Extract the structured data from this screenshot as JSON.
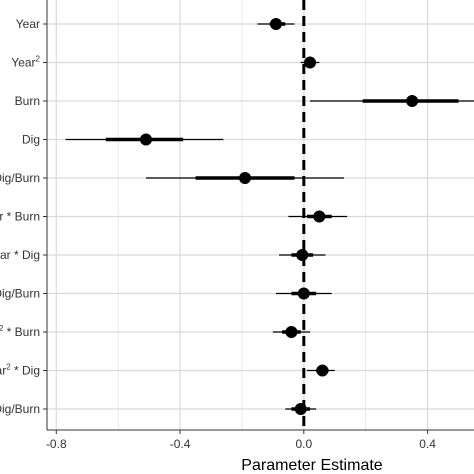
{
  "chart_data": {
    "type": "scatter",
    "subtype": "coefficient-plot",
    "xlabel": "Parameter Estimate",
    "ylabel": "",
    "xlim": [
      -0.83,
      0.55
    ],
    "xticks": [
      -0.8,
      -0.4,
      0.0,
      0.4
    ],
    "xtick_labels": [
      "-0.8",
      "-0.4",
      "0.0",
      "0.4"
    ],
    "reference_line": 0.0,
    "grid": true,
    "terms": [
      {
        "label": "Year",
        "sup": "",
        "label_after": "",
        "estimate": -0.09,
        "inner": [
          -0.11,
          -0.06
        ],
        "outer": [
          -0.15,
          -0.03
        ]
      },
      {
        "label": "Year",
        "sup": "2",
        "label_after": "",
        "estimate": 0.02,
        "inner": [
          0.005,
          0.035
        ],
        "outer": [
          -0.01,
          0.05
        ]
      },
      {
        "label": "Burn",
        "sup": "",
        "label_after": "",
        "estimate": 0.35,
        "inner": [
          0.19,
          0.5
        ],
        "outer": [
          0.02,
          0.55
        ]
      },
      {
        "label": "Dig",
        "sup": "",
        "label_after": "",
        "estimate": -0.51,
        "inner": [
          -0.64,
          -0.39
        ],
        "outer": [
          -0.77,
          -0.26
        ]
      },
      {
        "label": "Dig/Burn",
        "sup": "",
        "label_after": "",
        "estimate": -0.19,
        "inner": [
          -0.35,
          -0.03
        ],
        "outer": [
          -0.51,
          0.13
        ]
      },
      {
        "label": "r * Burn",
        "sup": "",
        "label_after": "",
        "estimate": 0.05,
        "inner": [
          0.01,
          0.09
        ],
        "outer": [
          -0.05,
          0.14
        ]
      },
      {
        "label": "ear * Dig",
        "sup": "",
        "label_after": "",
        "estimate": -0.005,
        "inner": [
          -0.04,
          0.03
        ],
        "outer": [
          -0.08,
          0.07
        ]
      },
      {
        "label": "Dig/Burn",
        "sup": "",
        "label_after": "",
        "estimate": 0.0,
        "inner": [
          -0.04,
          0.04
        ],
        "outer": [
          -0.09,
          0.09
        ]
      },
      {
        "label": "",
        "sup": "2",
        "label_after": " * Burn",
        "estimate": -0.04,
        "inner": [
          -0.07,
          -0.01
        ],
        "outer": [
          -0.1,
          0.02
        ]
      },
      {
        "label": "ar",
        "sup": "2",
        "label_after": " * Dig",
        "estimate": 0.06,
        "inner": [
          0.04,
          0.08
        ],
        "outer": [
          0.01,
          0.1
        ]
      },
      {
        "label": "Dig/Burn",
        "sup": "",
        "label_after": "",
        "estimate": -0.01,
        "inner": [
          -0.04,
          0.02
        ],
        "outer": [
          -0.06,
          0.04
        ]
      }
    ]
  },
  "colors": {
    "point": "#000000",
    "grid": "#d9d9d9",
    "axis": "#333333",
    "reference": "#000000",
    "background": "#ffffff"
  }
}
